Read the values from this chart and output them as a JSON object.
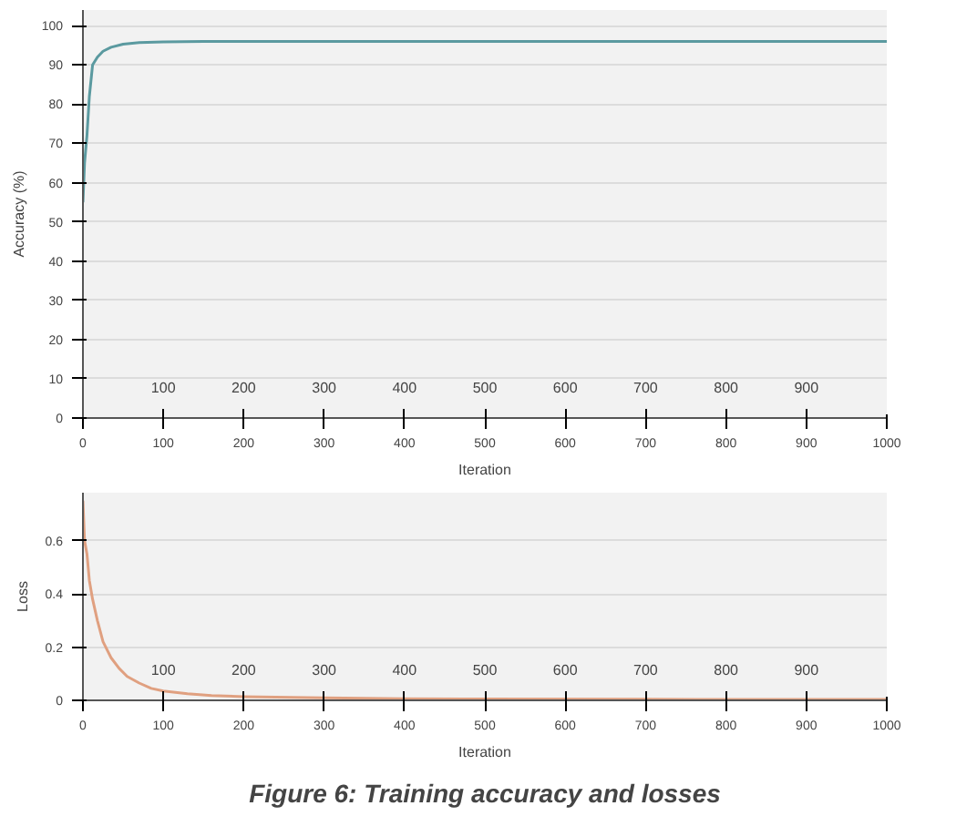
{
  "chart_data": [
    {
      "type": "line",
      "xlabel": "Iteration",
      "ylabel": "Accuracy (%)",
      "x": [
        0,
        2,
        5,
        8,
        12,
        18,
        25,
        35,
        50,
        70,
        100,
        150,
        200,
        300,
        400,
        500,
        600,
        700,
        800,
        900,
        1000
      ],
      "series": [
        {
          "color": "#5b9aa0",
          "values": [
            55,
            65,
            72,
            82,
            90,
            92,
            93.5,
            94.5,
            95.3,
            95.7,
            95.9,
            96,
            96,
            96,
            96,
            96,
            96,
            96,
            96,
            96,
            96
          ]
        }
      ],
      "xlim": [
        0,
        1000
      ],
      "xticks": [
        0,
        100,
        200,
        300,
        400,
        500,
        600,
        700,
        800,
        900,
        1000
      ],
      "x2lim": [
        0,
        1000
      ],
      "x2ticks": [
        100,
        200,
        300,
        400,
        500,
        600,
        700,
        800,
        900
      ],
      "ylim": [
        0,
        104
      ],
      "yticks": [
        0,
        10,
        20,
        30,
        40,
        50,
        60,
        70,
        80,
        90,
        100
      ],
      "grid": "y"
    },
    {
      "type": "line",
      "xlabel": "Iteration",
      "ylabel": "Loss",
      "x": [
        0,
        2,
        5,
        8,
        12,
        18,
        25,
        35,
        45,
        55,
        70,
        85,
        100,
        130,
        160,
        200,
        300,
        400,
        500,
        700,
        1000
      ],
      "series": [
        {
          "color": "#e0a080",
          "values": [
            0.75,
            0.6,
            0.55,
            0.45,
            0.38,
            0.3,
            0.22,
            0.16,
            0.12,
            0.09,
            0.065,
            0.045,
            0.035,
            0.025,
            0.018,
            0.014,
            0.009,
            0.006,
            0.005,
            0.004,
            0.003
          ]
        }
      ],
      "xlim": [
        0,
        1000
      ],
      "xticks": [
        0,
        100,
        200,
        300,
        400,
        500,
        600,
        700,
        800,
        900,
        1000
      ],
      "x2lim": [
        0,
        1000
      ],
      "x2ticks": [
        100,
        200,
        300,
        400,
        500,
        600,
        700,
        800,
        900
      ],
      "ylim": [
        0,
        0.78
      ],
      "yticks": [
        0,
        0.2,
        0.4,
        0.6
      ],
      "grid": "y",
      "annotations": [
        "Figure 6: Training accuracy and losses"
      ]
    }
  ]
}
